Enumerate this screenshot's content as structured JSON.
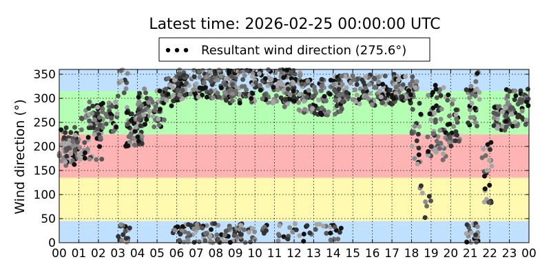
{
  "chart_data": {
    "type": "scatter",
    "title": "Latest time: 2026-02-25 00:00:00 UTC",
    "xlabel": "",
    "ylabel": "Wind direction (°)",
    "xlim": [
      0,
      24
    ],
    "ylim": [
      0,
      360
    ],
    "grid": true,
    "legend_position": "top-center",
    "x_ticks": [
      "00",
      "01",
      "02",
      "03",
      "04",
      "05",
      "06",
      "07",
      "08",
      "09",
      "10",
      "11",
      "12",
      "13",
      "14",
      "15",
      "16",
      "17",
      "18",
      "19",
      "20",
      "21",
      "22",
      "23",
      "00"
    ],
    "y_ticks": [
      0,
      50,
      100,
      150,
      200,
      250,
      300,
      350
    ],
    "bands": [
      {
        "from": 0,
        "to": 45,
        "color": "#bfe0ff"
      },
      {
        "from": 45,
        "to": 135,
        "color": "#fffaaf"
      },
      {
        "from": 135,
        "to": 225,
        "color": "#ffb4b4"
      },
      {
        "from": 225,
        "to": 315,
        "color": "#b4ffb4"
      },
      {
        "from": 315,
        "to": 360,
        "color": "#bfe0ff"
      }
    ],
    "series": [
      {
        "name": "Resultant wind direction (275.6°)",
        "marker": "circle",
        "colors": [
          "#111111",
          "#333333",
          "#555555",
          "#6e6e6e",
          "#8a8a8a",
          "#a5a5a5"
        ],
        "clusters": [
          {
            "x": [
              0.0,
              1.0
            ],
            "y": [
              160,
              240
            ],
            "density": 70
          },
          {
            "x": [
              1.0,
              2.2
            ],
            "y": [
              170,
              280
            ],
            "density": 50
          },
          {
            "x": [
              1.5,
              3.0
            ],
            "y": [
              230,
              295
            ],
            "density": 55
          },
          {
            "x": [
              3.0,
              3.6
            ],
            "y": [
              0,
              40
            ],
            "density": 18
          },
          {
            "x": [
              3.0,
              3.5
            ],
            "y": [
              280,
              360
            ],
            "density": 12
          },
          {
            "x": [
              3.4,
              4.3
            ],
            "y": [
              200,
              280
            ],
            "density": 60
          },
          {
            "x": [
              4.0,
              5.4
            ],
            "y": [
              240,
              320
            ],
            "density": 65
          },
          {
            "x": [
              5.4,
              6.3
            ],
            "y": [
              280,
              345
            ],
            "density": 45
          },
          {
            "x": [
              5.8,
              10.0
            ],
            "y": [
              0,
              40
            ],
            "density": 110
          },
          {
            "x": [
              6.0,
              9.0
            ],
            "y": [
              300,
              360
            ],
            "density": 140
          },
          {
            "x": [
              8.5,
              12.5
            ],
            "y": [
              290,
              360
            ],
            "density": 200
          },
          {
            "x": [
              10.0,
              14.5
            ],
            "y": [
              0,
              40
            ],
            "density": 45
          },
          {
            "x": [
              11.5,
              14.5
            ],
            "y": [
              265,
              340
            ],
            "density": 110
          },
          {
            "x": [
              14.0,
              17.5
            ],
            "y": [
              285,
              350
            ],
            "density": 150
          },
          {
            "x": [
              17.0,
              18.3
            ],
            "y": [
              290,
              345
            ],
            "density": 50
          },
          {
            "x": [
              18.0,
              18.5
            ],
            "y": [
              160,
              290
            ],
            "density": 20
          },
          {
            "x": [
              18.3,
              19.0
            ],
            "y": [
              50,
              120
            ],
            "density": 8
          },
          {
            "x": [
              18.8,
              19.8
            ],
            "y": [
              170,
              330
            ],
            "density": 55
          },
          {
            "x": [
              19.8,
              20.5
            ],
            "y": [
              200,
              310
            ],
            "density": 30
          },
          {
            "x": [
              20.8,
              21.4
            ],
            "y": [
              0,
              40
            ],
            "density": 20
          },
          {
            "x": [
              20.8,
              21.5
            ],
            "y": [
              240,
              360
            ],
            "density": 30
          },
          {
            "x": [
              21.6,
              22.1
            ],
            "y": [
              80,
              220
            ],
            "density": 25
          },
          {
            "x": [
              22.2,
              23.0
            ],
            "y": [
              230,
              290
            ],
            "density": 40
          },
          {
            "x": [
              22.8,
              24.0
            ],
            "y": [
              240,
              320
            ],
            "density": 55
          }
        ]
      }
    ]
  }
}
